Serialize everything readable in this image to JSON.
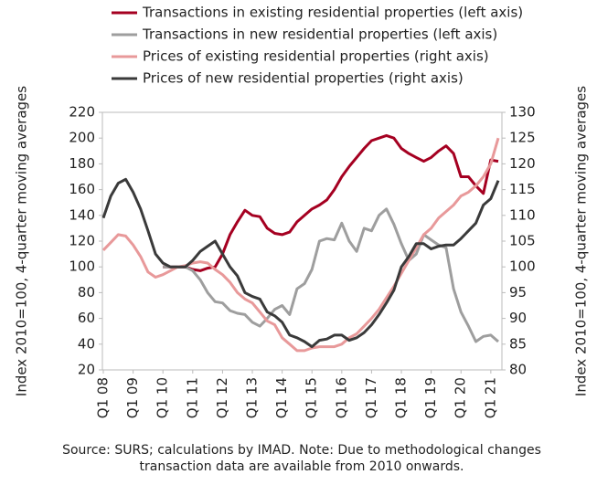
{
  "chart_data": {
    "type": "line",
    "y_label": "Index 2010=100, 4-quarter moving averages",
    "y2_label": "Index 2010=100, 4-quarter moving averages",
    "note": "Source: SURS; calculations by IMAD. Note: Due to methodological changes transaction data are available from 2010 onwards.",
    "categories": [
      "Q1 08",
      null,
      null,
      null,
      "Q1 09",
      null,
      null,
      null,
      "Q1 10",
      null,
      null,
      null,
      "Q1 11",
      null,
      null,
      null,
      "Q1 12",
      null,
      null,
      null,
      "Q1 13",
      null,
      null,
      null,
      "Q1 14",
      null,
      null,
      null,
      "Q1 15",
      null,
      null,
      null,
      "Q1 16",
      null,
      null,
      null,
      "Q1 17",
      null,
      null,
      null,
      "Q1 18",
      null,
      null,
      null,
      "Q1 19",
      null,
      null,
      null,
      "Q1 20",
      null,
      null,
      null,
      "Q1 21",
      null
    ],
    "ylim": [
      20,
      220
    ],
    "yticks": [
      20,
      40,
      60,
      80,
      100,
      120,
      140,
      160,
      180,
      200,
      220
    ],
    "y2lim": [
      80,
      130
    ],
    "y2ticks": [
      80,
      85,
      90,
      95,
      100,
      105,
      110,
      115,
      120,
      125,
      130
    ],
    "series": [
      {
        "name": "Transactions in existing residential properties (left axis)",
        "color": "#a50021",
        "axis": "y",
        "values": [
          null,
          null,
          null,
          null,
          null,
          null,
          null,
          null,
          100,
          100,
          100,
          100,
          98,
          97,
          99,
          100,
          110,
          125,
          135,
          144,
          140,
          139,
          130,
          126,
          125,
          127,
          135,
          140,
          145,
          148,
          152,
          160,
          170,
          178,
          185,
          192,
          198,
          200,
          202,
          200,
          192,
          188,
          185,
          182,
          185,
          190,
          194,
          188,
          170,
          170,
          163,
          157,
          183,
          182
        ]
      },
      {
        "name": "Transactions in new residential properties (left axis)",
        "color": "#9e9e9e",
        "axis": "y",
        "values": [
          null,
          null,
          null,
          null,
          null,
          null,
          null,
          null,
          100,
          100,
          100,
          100,
          97,
          90,
          80,
          73,
          72,
          66,
          64,
          63,
          57,
          54,
          60,
          67,
          70,
          63,
          83,
          87,
          98,
          120,
          122,
          121,
          134,
          120,
          112,
          130,
          128,
          140,
          145,
          133,
          118,
          105,
          110,
          125,
          121,
          117,
          115,
          83,
          65,
          54,
          42,
          46,
          47,
          42
        ]
      },
      {
        "name": "Prices of existing residential properties (right axis)",
        "color": "#e8999a",
        "axis": "y2",
        "values": [
          103.25,
          104.75,
          106.25,
          106,
          104.25,
          102,
          99,
          98,
          98.5,
          99.25,
          100,
          100.25,
          100.75,
          101,
          100.75,
          99.5,
          98.5,
          97,
          95,
          93.75,
          93,
          91.25,
          89.5,
          88.75,
          86.25,
          85,
          83.75,
          83.75,
          84.25,
          84.5,
          84.5,
          84.5,
          85,
          86.25,
          87,
          88.5,
          90,
          91.75,
          94,
          96.25,
          98.75,
          101.25,
          103.75,
          106.25,
          107.5,
          109.5,
          110.75,
          112,
          113.75,
          114.5,
          115.75,
          117.5,
          120,
          125
        ]
      },
      {
        "name": "Prices of new residential properties (right axis)",
        "color": "#3a3a3a",
        "axis": "y2",
        "values": [
          109.5,
          113.75,
          116.25,
          117,
          114.5,
          111.25,
          107,
          102.5,
          100.75,
          100,
          100,
          100,
          101.25,
          103,
          104,
          105,
          102.5,
          100,
          98.25,
          95,
          94.25,
          93.75,
          91.25,
          90.5,
          89.25,
          86.75,
          86.25,
          85.5,
          84.5,
          85.75,
          86,
          86.75,
          86.75,
          85.75,
          86.25,
          87.25,
          88.75,
          90.75,
          93,
          95.5,
          100,
          102,
          104.5,
          104.5,
          103.5,
          104,
          104.25,
          104.25,
          105.5,
          107,
          108.5,
          112,
          113.25,
          116.75
        ]
      }
    ]
  }
}
